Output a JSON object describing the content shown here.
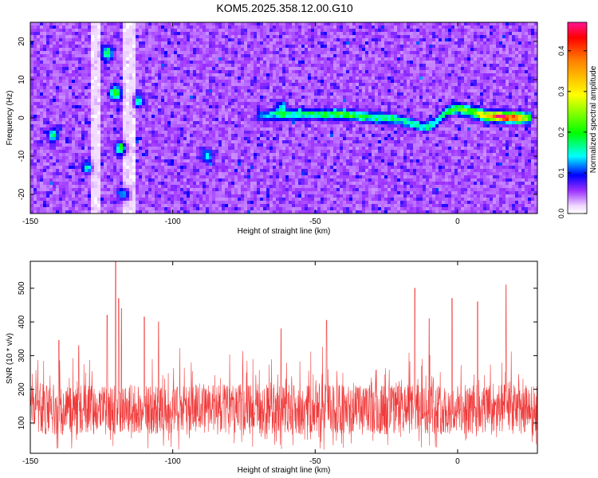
{
  "title": "KOM5.2025.358.12.00.G10",
  "chart_data": [
    {
      "type": "heatmap",
      "xlabel": "Height of straight line (km)",
      "ylabel": "Frequency (Hz)",
      "xlim": [
        -150,
        28
      ],
      "ylim": [
        -25,
        25
      ],
      "xticks": [
        -150,
        -100,
        -50,
        0
      ],
      "yticks": [
        -20,
        -10,
        0,
        10,
        20
      ],
      "colorbar": {
        "label": "Normalized spectral amplitude",
        "range": [
          0.0,
          0.47
        ],
        "ticks": [
          0.0,
          0.1,
          0.2,
          0.3,
          0.4
        ],
        "tick_labels": [
          "0.0",
          "0.1",
          "0.2",
          "0.3",
          "0.4"
        ]
      },
      "ridge": [
        {
          "x": -70,
          "y": 0.5,
          "amp": 0.08
        },
        {
          "x": -60,
          "y": 0.8,
          "amp": 0.12
        },
        {
          "x": -50,
          "y": 1.0,
          "amp": 0.14
        },
        {
          "x": -40,
          "y": 0.9,
          "amp": 0.16
        },
        {
          "x": -30,
          "y": 0.2,
          "amp": 0.14
        },
        {
          "x": -20,
          "y": -0.5,
          "amp": 0.12
        },
        {
          "x": -12,
          "y": -2.5,
          "amp": 0.12
        },
        {
          "x": -8,
          "y": -1.5,
          "amp": 0.13
        },
        {
          "x": -4,
          "y": 1.5,
          "amp": 0.15
        },
        {
          "x": 0,
          "y": 2.5,
          "amp": 0.18
        },
        {
          "x": 5,
          "y": 1.5,
          "amp": 0.22
        },
        {
          "x": 10,
          "y": 0.5,
          "amp": 0.3
        },
        {
          "x": 16,
          "y": 0.2,
          "amp": 0.46
        },
        {
          "x": 22,
          "y": 0.0,
          "amp": 0.33
        },
        {
          "x": 26,
          "y": 0.0,
          "amp": 0.15
        }
      ],
      "hotspots": [
        {
          "x": -123,
          "y": 17,
          "amp": 0.14
        },
        {
          "x": -120,
          "y": 6.5,
          "amp": 0.17
        },
        {
          "x": -118,
          "y": -8,
          "amp": 0.14
        },
        {
          "x": -142,
          "y": -4.5,
          "amp": 0.13
        },
        {
          "x": -130,
          "y": -13,
          "amp": 0.1
        },
        {
          "x": -112,
          "y": 4.5,
          "amp": 0.11
        },
        {
          "x": -62,
          "y": 2.5,
          "amp": 0.1
        },
        {
          "x": -88,
          "y": -10,
          "amp": 0.1
        },
        {
          "x": -117,
          "y": -20,
          "amp": 0.11
        }
      ]
    },
    {
      "type": "line",
      "xlabel": "Height of straight line (km)",
      "ylabel": "SNR (10 * v/v)",
      "xlim": [
        -150,
        28
      ],
      "ylim": [
        10,
        580
      ],
      "xticks": [
        -150,
        -100,
        -50,
        0
      ],
      "yticks": [
        100,
        200,
        300,
        400,
        500
      ],
      "color": "#f03a3a",
      "baseline": 140,
      "peaks": [
        {
          "x": -123,
          "y": 420
        },
        {
          "x": -120,
          "y": 580
        },
        {
          "x": -119,
          "y": 470
        },
        {
          "x": -118,
          "y": 440
        },
        {
          "x": -110,
          "y": 415
        },
        {
          "x": -105,
          "y": 400
        },
        {
          "x": -140,
          "y": 345
        },
        {
          "x": -133,
          "y": 330
        },
        {
          "x": -62,
          "y": 380
        },
        {
          "x": -46,
          "y": 405
        },
        {
          "x": -15,
          "y": 500
        },
        {
          "x": -10,
          "y": 410
        },
        {
          "x": -2,
          "y": 470
        },
        {
          "x": 7,
          "y": 460
        },
        {
          "x": 17,
          "y": 510
        }
      ]
    }
  ]
}
